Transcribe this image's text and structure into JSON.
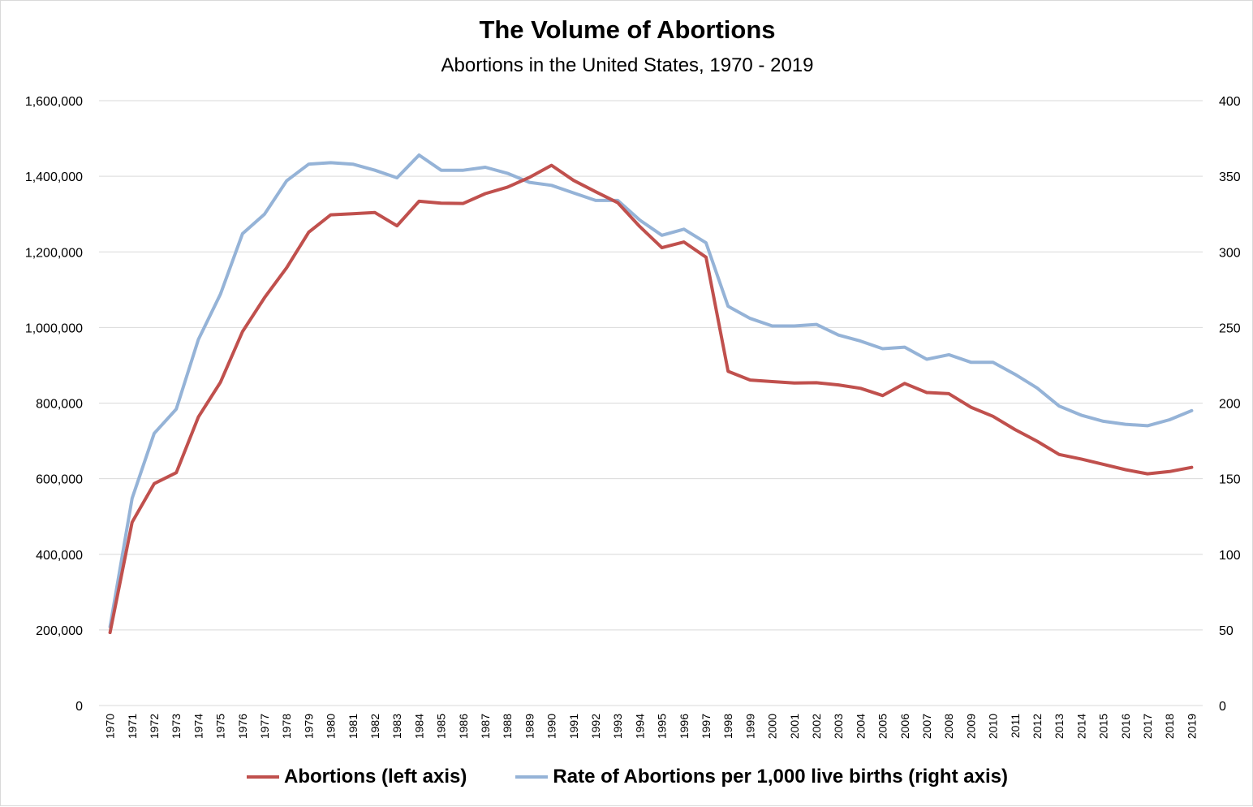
{
  "colors": {
    "abortions": "#c0504d",
    "rate": "#95b3d7",
    "grid": "#d9d9d9"
  },
  "chart_data": {
    "type": "line",
    "title": "The Volume of Abortions",
    "subtitle": "Abortions in the United States, 1970 - 2019",
    "x": [
      "1970",
      "1971",
      "1972",
      "1973",
      "1974",
      "1975",
      "1976",
      "1977",
      "1978",
      "1979",
      "1980",
      "1981",
      "1982",
      "1983",
      "1984",
      "1985",
      "1986",
      "1987",
      "1988",
      "1989",
      "1990",
      "1991",
      "1992",
      "1993",
      "1994",
      "1995",
      "1996",
      "1997",
      "1998",
      "1999",
      "2000",
      "2001",
      "2002",
      "2003",
      "2004",
      "2005",
      "2006",
      "2007",
      "2008",
      "2009",
      "2010",
      "2011",
      "2012",
      "2013",
      "2014",
      "2015",
      "2016",
      "2017",
      "2018",
      "2019"
    ],
    "y_left": {
      "ylim": [
        0,
        1600000
      ],
      "ticks": [
        "0",
        "200,000",
        "400,000",
        "600,000",
        "800,000",
        "1,000,000",
        "1,200,000",
        "1,400,000",
        "1,600,000"
      ]
    },
    "y_right": {
      "ylim": [
        0,
        400
      ],
      "ticks": [
        "0",
        "50",
        "100",
        "150",
        "200",
        "250",
        "300",
        "350",
        "400"
      ]
    },
    "grid": true,
    "legend_position": "bottom",
    "series": [
      {
        "name": "Abortions (left axis)",
        "axis": "left",
        "color": "#c0504d",
        "values": [
          193000,
          485000,
          587000,
          616000,
          763000,
          855000,
          989000,
          1079000,
          1158000,
          1252000,
          1298000,
          1301000,
          1304000,
          1269000,
          1334000,
          1329000,
          1328000,
          1354000,
          1371000,
          1397000,
          1429000,
          1389000,
          1359000,
          1330000,
          1267000,
          1211000,
          1226000,
          1186000,
          884000,
          861000,
          857000,
          853000,
          854000,
          848000,
          839000,
          820000,
          852000,
          828000,
          825000,
          789000,
          765000,
          730000,
          699000,
          664000,
          652000,
          638000,
          624000,
          613000,
          619000,
          630000
        ]
      },
      {
        "name": "Rate of Abortions per 1,000 live births (right axis)",
        "axis": "right",
        "color": "#95b3d7",
        "values": [
          52,
          137,
          180,
          196,
          242,
          272,
          312,
          325,
          347,
          358,
          359,
          358,
          354,
          349,
          364,
          354,
          354,
          356,
          352,
          346,
          344,
          339,
          334,
          334,
          321,
          311,
          315,
          306,
          264,
          256,
          251,
          251,
          252,
          245,
          241,
          236,
          237,
          229,
          232,
          227,
          227,
          219,
          210,
          198,
          192,
          188,
          186,
          185,
          189,
          195
        ]
      }
    ]
  }
}
